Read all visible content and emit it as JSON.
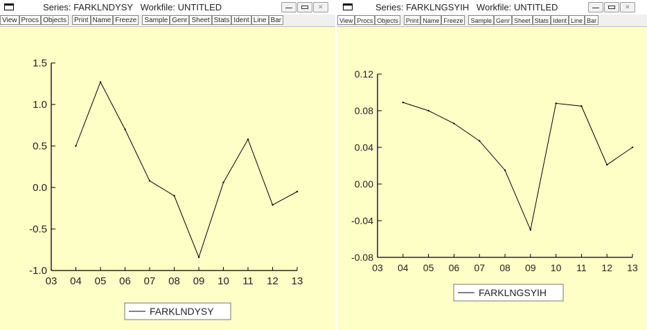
{
  "windows": [
    {
      "id": "left",
      "title": "Series: FARKLNDYSY   Workfile: UNTITLED",
      "toolbar": [
        [
          "View",
          "Procs",
          "Objects"
        ],
        [
          "Print",
          "Name",
          "Freeze"
        ],
        [
          "Sample",
          "Genr",
          "Sheet",
          "Stats",
          "Ident",
          "Line",
          "Bar"
        ]
      ],
      "chart_data": {
        "type": "line",
        "x": [
          "04",
          "05",
          "06",
          "07",
          "08",
          "09",
          "10",
          "11",
          "12",
          "13"
        ],
        "x_ticks": [
          "03",
          "04",
          "05",
          "06",
          "07",
          "08",
          "09",
          "10",
          "11",
          "12",
          "13"
        ],
        "series": [
          {
            "name": "FARKLNDYSY",
            "values": [
              0.5,
              1.27,
              0.7,
              0.08,
              -0.1,
              -0.84,
              0.06,
              0.58,
              -0.21,
              -0.05
            ]
          }
        ],
        "y_ticks": [
          "1.5",
          "1.0",
          "0.5",
          "0.0",
          "-0.5",
          "-1.0"
        ],
        "ylim": [
          -1.0,
          1.5
        ],
        "xlabel": "",
        "ylabel": "",
        "legend_position": "bottom-center",
        "grid": false
      }
    },
    {
      "id": "right",
      "title": "Series: FARKLNGSYIH   Workfile: UNTITLED",
      "toolbar": [
        [
          "View",
          "Procs",
          "Objects"
        ],
        [
          "Print",
          "Name",
          "Freeze"
        ],
        [
          "Sample",
          "Genr",
          "Sheet",
          "Stats",
          "Ident",
          "Line",
          "Bar"
        ]
      ],
      "chart_data": {
        "type": "line",
        "x": [
          "04",
          "05",
          "06",
          "07",
          "08",
          "09",
          "10",
          "11",
          "12",
          "13"
        ],
        "x_ticks": [
          "03",
          "04",
          "05",
          "06",
          "07",
          "08",
          "09",
          "10",
          "11",
          "12",
          "13"
        ],
        "series": [
          {
            "name": "FARKLNGSYIH",
            "values": [
              0.089,
              0.08,
              0.066,
              0.047,
              0.015,
              -0.05,
              0.088,
              0.085,
              0.021,
              0.04
            ]
          }
        ],
        "y_ticks": [
          "0.12",
          "0.08",
          "0.04",
          "0.00",
          "-0.04",
          "-0.08"
        ],
        "ylim": [
          -0.08,
          0.12
        ],
        "xlabel": "",
        "ylabel": "",
        "legend_position": "bottom-center",
        "grid": false
      }
    }
  ],
  "colors": {
    "plot_bg": "#fefec7",
    "axis": "#000000",
    "line": "#000000",
    "toolbar_bg": "#f0f0f0"
  }
}
